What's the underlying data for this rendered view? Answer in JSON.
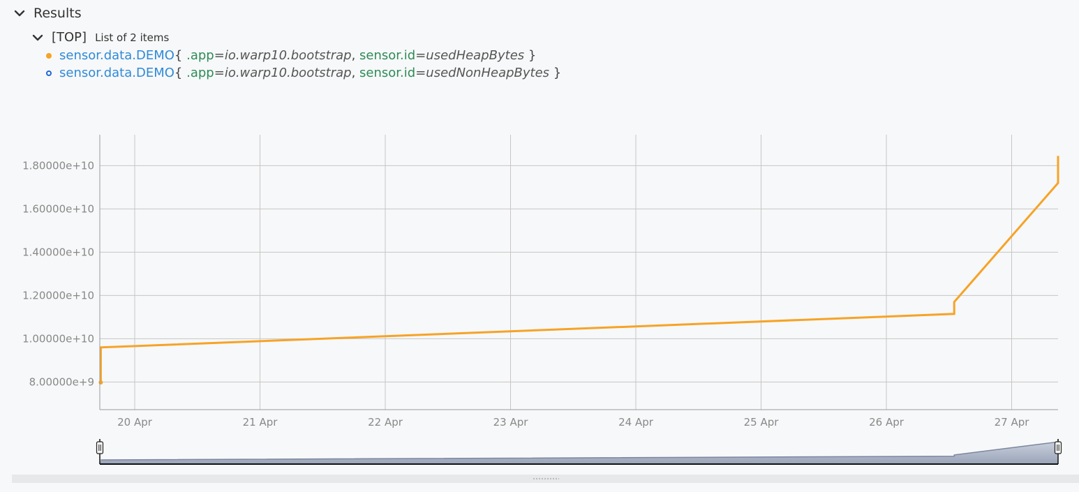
{
  "results": {
    "title": "Results"
  },
  "list": {
    "tag": "[TOP]",
    "count_label": "List of 2 items"
  },
  "series_rows": [
    {
      "class_name": "sensor.data.DEMO",
      "open": "{",
      "k1": ".app",
      "v1": "io.warp10.bootstrap",
      "sep": ",",
      "k2": "sensor.id",
      "v2": "usedHeapBytes",
      "close": "}",
      "color": "#f6a326"
    },
    {
      "class_name": "sensor.data.DEMO",
      "open": "{",
      "k1": ".app",
      "v1": "io.warp10.bootstrap",
      "sep": ",",
      "k2": "sensor.id",
      "v2": "usedNonHeapBytes",
      "close": "}",
      "color": "#2066d6"
    }
  ],
  "chart_data": {
    "type": "line",
    "x_ticks": [
      "20 Apr",
      "21 Apr",
      "22 Apr",
      "23 Apr",
      "24 Apr",
      "25 Apr",
      "26 Apr",
      "27 Apr"
    ],
    "y_ticks": [
      "8.00000e+9",
      "1.00000e+10",
      "1.20000e+10",
      "1.40000e+10",
      "1.60000e+10",
      "1.80000e+10"
    ],
    "ylim": [
      6900000000,
      19600000000
    ],
    "xlim": [
      "2021-04-19 17:30",
      "2021-04-27 10:00"
    ],
    "grid": true,
    "series": [
      {
        "color": "#f6a326",
        "x": [
          "2021-04-19 17:30",
          "2021-04-19 17:30",
          "2021-04-26 13:00",
          "2021-04-26 13:00",
          "2021-04-27 10:00",
          "2021-04-27 10:00"
        ],
        "y": [
          7980000000,
          9600000000,
          11150000000,
          11700000000,
          17200000000,
          18450000000
        ]
      }
    ]
  }
}
